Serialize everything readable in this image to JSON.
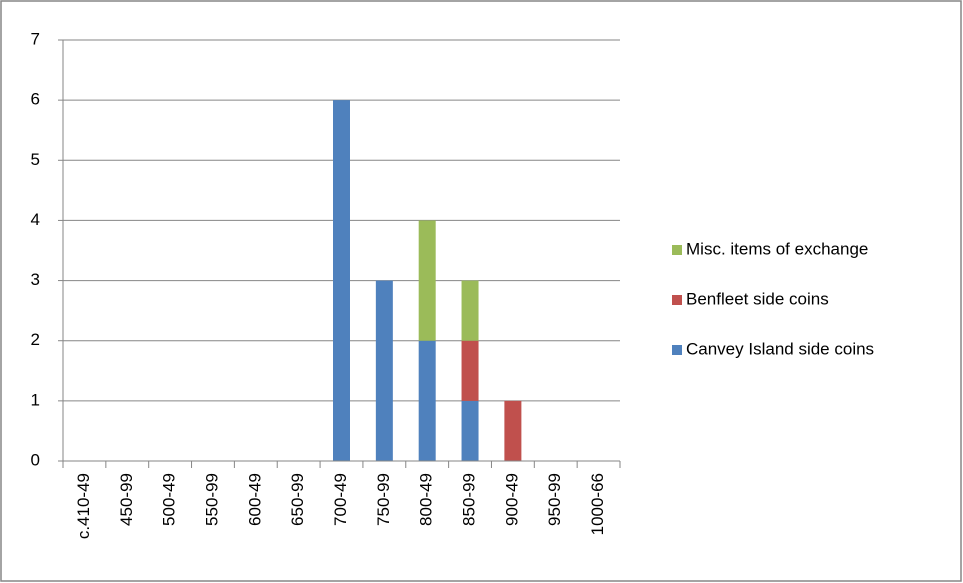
{
  "chart_data": {
    "type": "bar",
    "stacked": true,
    "categories": [
      "c.410-49",
      "450-99",
      "500-49",
      "550-99",
      "600-49",
      "650-99",
      "700-49",
      "750-99",
      "800-49",
      "850-99",
      "900-49",
      "950-99",
      "1000-66"
    ],
    "series": [
      {
        "name": "Canvey Island side coins",
        "color": "#4f81bd",
        "values": [
          0,
          0,
          0,
          0,
          0,
          0,
          6,
          3,
          2,
          1,
          0,
          0,
          0
        ]
      },
      {
        "name": "Benfleet side coins",
        "color": "#c0504d",
        "values": [
          0,
          0,
          0,
          0,
          0,
          0,
          0,
          0,
          0,
          1,
          1,
          0,
          0
        ]
      },
      {
        "name": "Misc. items of exchange",
        "color": "#9bbb59",
        "values": [
          0,
          0,
          0,
          0,
          0,
          0,
          0,
          0,
          2,
          1,
          0,
          0,
          0
        ]
      }
    ],
    "ylim": [
      0,
      7
    ],
    "yticks": [
      0,
      1,
      2,
      3,
      4,
      5,
      6,
      7
    ],
    "grid": true,
    "legend": "right"
  }
}
